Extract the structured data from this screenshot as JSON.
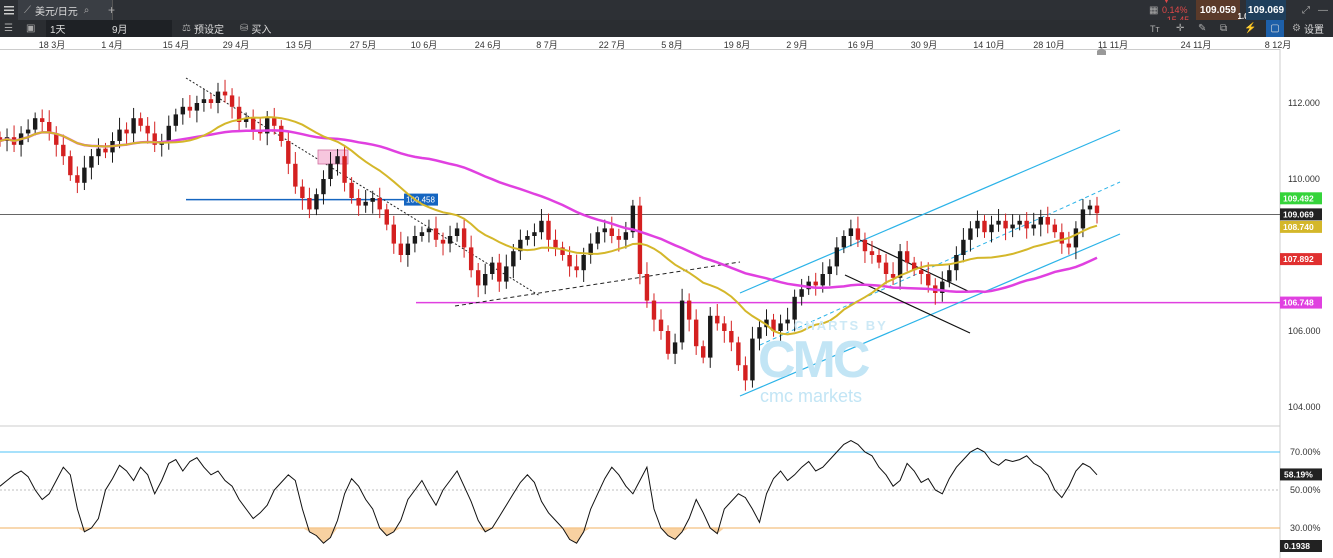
{
  "topbar": {
    "menu_icon": "menu-icon",
    "instrument_tab": "美元/日元",
    "add_tab": "+",
    "change_pct": "▼ 0.14%",
    "change_pts": "15.45",
    "bid": "109.059",
    "spread": "1.0",
    "ask": "109.069"
  },
  "toolbar": {
    "interval": "1天",
    "range": "9月",
    "preset_label": "预设定",
    "buy_label": "买入",
    "settings_label": "设置"
  },
  "dates": [
    {
      "label": "18 3月",
      "pos": 0
    },
    {
      "label": "1 4月",
      "pos": 1
    },
    {
      "label": "15 4月",
      "pos": 2
    },
    {
      "label": "29 4月",
      "pos": 3
    },
    {
      "label": "13 5月",
      "pos": 4
    },
    {
      "label": "27 5月",
      "pos": 5
    },
    {
      "label": "10 6月",
      "pos": 6
    },
    {
      "label": "24 6月",
      "pos": 7
    },
    {
      "label": "8 7月",
      "pos": 8
    },
    {
      "label": "22 7月",
      "pos": 9
    },
    {
      "label": "5 8月",
      "pos": 10
    },
    {
      "label": "19 8月",
      "pos": 11
    },
    {
      "label": "2 9月",
      "pos": 12
    },
    {
      "label": "16 9月",
      "pos": 13
    },
    {
      "label": "30 9月",
      "pos": 14
    },
    {
      "label": "14 10月",
      "pos": 15
    },
    {
      "label": "28 10月",
      "pos": 16
    },
    {
      "label": "11 11月",
      "pos": 17
    },
    {
      "label": "24 11月",
      "pos": 18
    },
    {
      "label": "8 12月",
      "pos": 19
    }
  ],
  "chart_data": {
    "type": "candlestick",
    "price_axis": {
      "ticks": [
        "112.000",
        "110.000",
        "106.000",
        "104.000"
      ],
      "tick_values": [
        112,
        110,
        106,
        104
      ],
      "ylim": [
        103.5,
        113.5
      ]
    },
    "price_tags": [
      {
        "label": "109.492",
        "value": 109.492,
        "color": "#35d43a"
      },
      {
        "label": "109.069",
        "value": 109.069,
        "color": "#222222"
      },
      {
        "label": "108.740",
        "value": 108.74,
        "color": "#d4b72a"
      },
      {
        "label": "107.892",
        "value": 107.892,
        "color": "#e03030"
      },
      {
        "label": "106.748",
        "value": 106.748,
        "color": "#e040e0"
      }
    ],
    "level_labels": [
      {
        "label": "109.458",
        "value": 109.458,
        "color": "#1565c0"
      }
    ],
    "close": [
      111.0,
      111.1,
      110.9,
      111.2,
      111.3,
      111.6,
      111.5,
      111.2,
      110.9,
      110.6,
      110.1,
      109.9,
      110.3,
      110.6,
      110.8,
      110.7,
      111.0,
      111.3,
      111.2,
      111.6,
      111.4,
      111.2,
      110.9,
      111.0,
      111.4,
      111.7,
      111.9,
      111.8,
      112.0,
      112.1,
      112.0,
      112.3,
      112.2,
      111.9,
      111.5,
      111.6,
      111.3,
      111.2,
      111.6,
      111.4,
      111.0,
      110.4,
      109.8,
      109.5,
      109.2,
      109.6,
      110.0,
      110.4,
      110.6,
      109.9,
      109.5,
      109.3,
      109.4,
      109.5,
      109.2,
      108.8,
      108.3,
      108.0,
      108.3,
      108.5,
      108.6,
      108.7,
      108.4,
      108.3,
      108.5,
      108.7,
      108.2,
      107.6,
      107.2,
      107.5,
      107.8,
      107.3,
      107.7,
      108.1,
      108.4,
      108.5,
      108.6,
      108.9,
      108.4,
      108.2,
      108.0,
      107.7,
      107.6,
      108.0,
      108.3,
      108.6,
      108.7,
      108.5,
      108.4,
      108.6,
      109.3,
      107.5,
      106.8,
      106.3,
      106.0,
      105.4,
      105.7,
      106.8,
      106.3,
      105.6,
      105.3,
      106.4,
      106.2,
      106.0,
      105.7,
      105.1,
      104.7,
      105.8,
      106.1,
      106.3,
      106.0,
      106.2,
      106.3,
      106.9,
      107.1,
      107.3,
      107.2,
      107.5,
      107.7,
      108.2,
      108.5,
      108.7,
      108.4,
      108.1,
      108.0,
      107.8,
      107.5,
      107.4,
      108.1,
      107.8,
      107.6,
      107.5,
      107.2,
      107.0,
      107.3,
      107.6,
      108.0,
      108.4,
      108.7,
      108.9,
      108.6,
      108.8,
      108.9,
      108.7,
      108.8,
      108.9,
      108.7,
      108.8,
      109.0,
      108.8,
      108.6,
      108.3,
      108.2,
      108.7,
      109.2,
      109.3,
      109.1
    ],
    "sma_yellow": {
      "name": "",
      "color": "#d4b72a",
      "last": 108.74
    },
    "sma_magenta": {
      "name": "",
      "color": "#e040e0",
      "last": 107.892
    },
    "rsi_panel": {
      "ticks": [
        "70.00%",
        "50.00%",
        "30.00%"
      ],
      "tick_values": [
        70,
        50,
        30
      ],
      "current_label": "58.19%",
      "current": 58.19,
      "bottom_label": "0.1938",
      "overbought": 70,
      "oversold": 30,
      "values": [
        52,
        55,
        58,
        60,
        57,
        50,
        45,
        48,
        55,
        62,
        58,
        40,
        28,
        30,
        35,
        50,
        56,
        63,
        60,
        55,
        62,
        58,
        48,
        55,
        64,
        66,
        60,
        65,
        67,
        62,
        58,
        60,
        55,
        52,
        45,
        40,
        35,
        38,
        42,
        50,
        54,
        58,
        55,
        40,
        28,
        26,
        22,
        25,
        34,
        48,
        56,
        52,
        45,
        40,
        30,
        26,
        28,
        34,
        45,
        50,
        55,
        48,
        42,
        50,
        55,
        60,
        52,
        44,
        34,
        28,
        30,
        36,
        42,
        48,
        54,
        58,
        54,
        44,
        38,
        34,
        30,
        24,
        22,
        28,
        40,
        48,
        56,
        62,
        58,
        52,
        48,
        55,
        62,
        40,
        30,
        26,
        24,
        28,
        35,
        45,
        38,
        30,
        27,
        40,
        44,
        48,
        46,
        40,
        33,
        48,
        56,
        60,
        55,
        58,
        62,
        65,
        60,
        62,
        66,
        70,
        74,
        76,
        74,
        70,
        68,
        62,
        58,
        52,
        55,
        64,
        60,
        54,
        56,
        50,
        48,
        56,
        62,
        66,
        70,
        72,
        70,
        65,
        63,
        66,
        65,
        66,
        68,
        64,
        62,
        58,
        50,
        46,
        52,
        60,
        64,
        62,
        58
      ]
    },
    "watermark": {
      "line1": "CHARTS BY",
      "line2": "CMC",
      "line3": "cmc markets"
    }
  }
}
